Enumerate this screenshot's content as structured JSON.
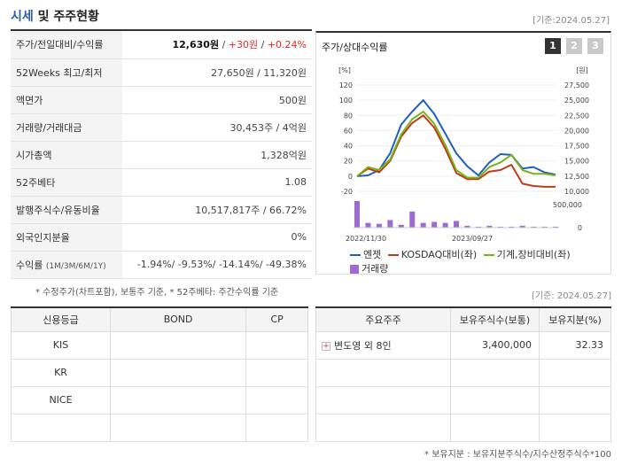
{
  "header": {
    "title_blue": "시세",
    "title_rest": " 및 주주현황",
    "date": "[기준:2024.05.27]"
  },
  "info": [
    {
      "label": "주가/전일대비/수익률",
      "value_main": "12,630원",
      "value_sep1": " / ",
      "value_change": "+30원",
      "value_sep2": " / ",
      "value_pct": "+0.24%"
    },
    {
      "label": "52Weeks 최고/최저",
      "value": "27,650원 / 11,320원"
    },
    {
      "label": "액면가",
      "value": "500원"
    },
    {
      "label": "거래량/거래대금",
      "value": "30,453주 / 4억원"
    },
    {
      "label": "시가총액",
      "value": "1,328억원"
    },
    {
      "label": "52주베타",
      "value": "1.08"
    },
    {
      "label": "발행주식수/유동비율",
      "value": "10,517,817주 / 66.72%"
    },
    {
      "label": "외국인지분율",
      "value": "0%"
    },
    {
      "label": "수익률",
      "label_small": "(1M/3M/6M/1Y)",
      "value": "-1.94%/ -9.53%/ -14.14%/ -49.38%"
    }
  ],
  "note1": "* 수정주가(차트포함), 보통주 기준, * 52주베타: 주간수익률 기준",
  "chart_panel": {
    "title": "주가/상대수익률",
    "tabs": [
      "1",
      "2",
      "3"
    ]
  },
  "chart_data": {
    "type": "line",
    "y_left_unit": "[%]",
    "y_right_unit": "[원]",
    "y_left_ticks": [
      "120",
      "100",
      "80",
      "60",
      "40",
      "20",
      "0",
      "-20"
    ],
    "y_right_ticks": [
      "27,500",
      "25,000",
      "22,500",
      "20,000",
      "17,500",
      "15,000",
      "12,500",
      "10,000"
    ],
    "volume_ticks": [
      "500,000",
      "0"
    ],
    "x_labels": [
      "2022/11/30",
      "2023/09/27"
    ],
    "ylim_left": [
      -20,
      120
    ],
    "series": [
      {
        "name": "엔젯",
        "color": "#1f5fbf",
        "values": [
          0,
          1,
          8,
          30,
          68,
          85,
          100,
          82,
          56,
          30,
          13,
          1,
          18,
          29,
          28,
          10,
          12,
          5,
          2
        ]
      },
      {
        "name": "KOSDAQ대비(좌)",
        "color": "#c0391b",
        "values": [
          0,
          10,
          5,
          20,
          52,
          70,
          80,
          64,
          36,
          4,
          -4,
          -4,
          6,
          8,
          15,
          -10,
          -13,
          -14,
          -14
        ]
      },
      {
        "name": "기계,장비대비(좌)",
        "color": "#7ab317",
        "values": [
          0,
          12,
          8,
          22,
          55,
          75,
          85,
          69,
          41,
          8,
          -2,
          -2,
          12,
          18,
          28,
          8,
          3,
          3,
          1
        ]
      }
    ],
    "volume": [
      28,
      5,
      4,
      8,
      3,
      17,
      5,
      6,
      5,
      7,
      2,
      1,
      2,
      1,
      1,
      2,
      1,
      1,
      1
    ],
    "volume_series_name": "거래량"
  },
  "date2": "[기준: 2024.05.27]",
  "credit": {
    "headers": [
      "신용등급",
      "BOND",
      "CP"
    ],
    "rows": [
      [
        "KIS",
        "",
        ""
      ],
      [
        "KR",
        "",
        ""
      ],
      [
        "NICE",
        "",
        ""
      ],
      [
        "",
        "",
        ""
      ]
    ]
  },
  "holders": {
    "headers": [
      "주요주주",
      "보유주식수(보통)",
      "보유지분(%)"
    ],
    "rows": [
      {
        "name": "변도영 외 8인",
        "shares": "3,400,000",
        "pct": "32.33"
      },
      {
        "name": "",
        "shares": "",
        "pct": ""
      },
      {
        "name": "",
        "shares": "",
        "pct": ""
      },
      {
        "name": "",
        "shares": "",
        "pct": ""
      }
    ]
  },
  "note2": "* 보유지분 : 보유지분주식수/지수산정주식수*100"
}
